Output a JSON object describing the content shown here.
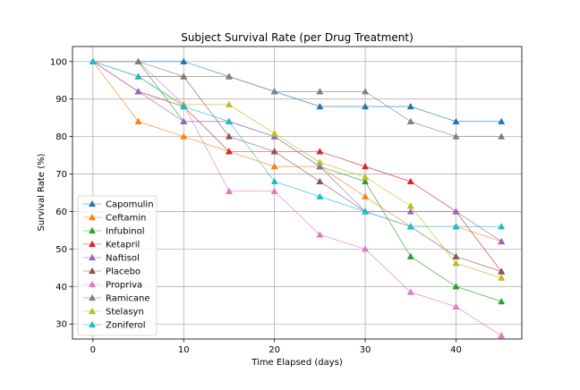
{
  "chart_data": {
    "type": "line",
    "title": "Subject Survival Rate (per Drug Treatment)",
    "xlabel": "Time Elapsed (days)",
    "ylabel": "Survival Rate (%)",
    "xlim": [
      -2.25,
      47.25
    ],
    "ylim": [
      26,
      104
    ],
    "xticks": [
      0,
      10,
      20,
      30,
      40
    ],
    "yticks": [
      30,
      40,
      50,
      60,
      70,
      80,
      90,
      100
    ],
    "grid": true,
    "legend_position": "lower-left",
    "marker": "triangle",
    "x": [
      0,
      5,
      10,
      15,
      20,
      25,
      30,
      35,
      40,
      45
    ],
    "series": [
      {
        "name": "Capomulin",
        "color": "#1f77b4",
        "values": [
          100,
          100,
          100,
          96,
          92,
          88,
          88,
          88,
          84,
          84
        ]
      },
      {
        "name": "Ceftamin",
        "color": "#ff7f0e",
        "values": [
          100,
          84,
          80,
          76,
          72,
          72,
          64,
          56,
          56,
          52
        ]
      },
      {
        "name": "Infubinol",
        "color": "#2ca02c",
        "values": [
          100,
          100,
          84,
          84,
          80,
          72,
          68,
          48,
          40,
          36
        ]
      },
      {
        "name": "Ketapril",
        "color": "#d62728",
        "values": [
          100,
          92,
          88,
          76,
          76,
          76,
          72,
          68,
          60,
          44
        ]
      },
      {
        "name": "Naftisol",
        "color": "#9467bd",
        "values": [
          100,
          92,
          84,
          84,
          80,
          72,
          60,
          60,
          60,
          52
        ]
      },
      {
        "name": "Placebo",
        "color": "#8c564b",
        "values": [
          100,
          96,
          96,
          80,
          76,
          68,
          60,
          56,
          48,
          44
        ]
      },
      {
        "name": "Propriva",
        "color": "#e377c2",
        "values": [
          100,
          100,
          88.5,
          65.4,
          65.4,
          53.8,
          50,
          38.5,
          34.6,
          26.9
        ]
      },
      {
        "name": "Ramicane",
        "color": "#7f7f7f",
        "values": [
          100,
          100,
          96,
          96,
          92,
          92,
          92,
          84,
          80,
          80
        ]
      },
      {
        "name": "Stelasyn",
        "color": "#bcbd22",
        "values": [
          100,
          96,
          88.5,
          88.5,
          80.8,
          73.1,
          69.2,
          61.5,
          46.2,
          42.3
        ]
      },
      {
        "name": "Zoniferol",
        "color": "#17becf",
        "values": [
          100,
          96,
          88,
          84,
          68,
          64,
          60,
          56,
          56,
          56
        ]
      }
    ]
  }
}
